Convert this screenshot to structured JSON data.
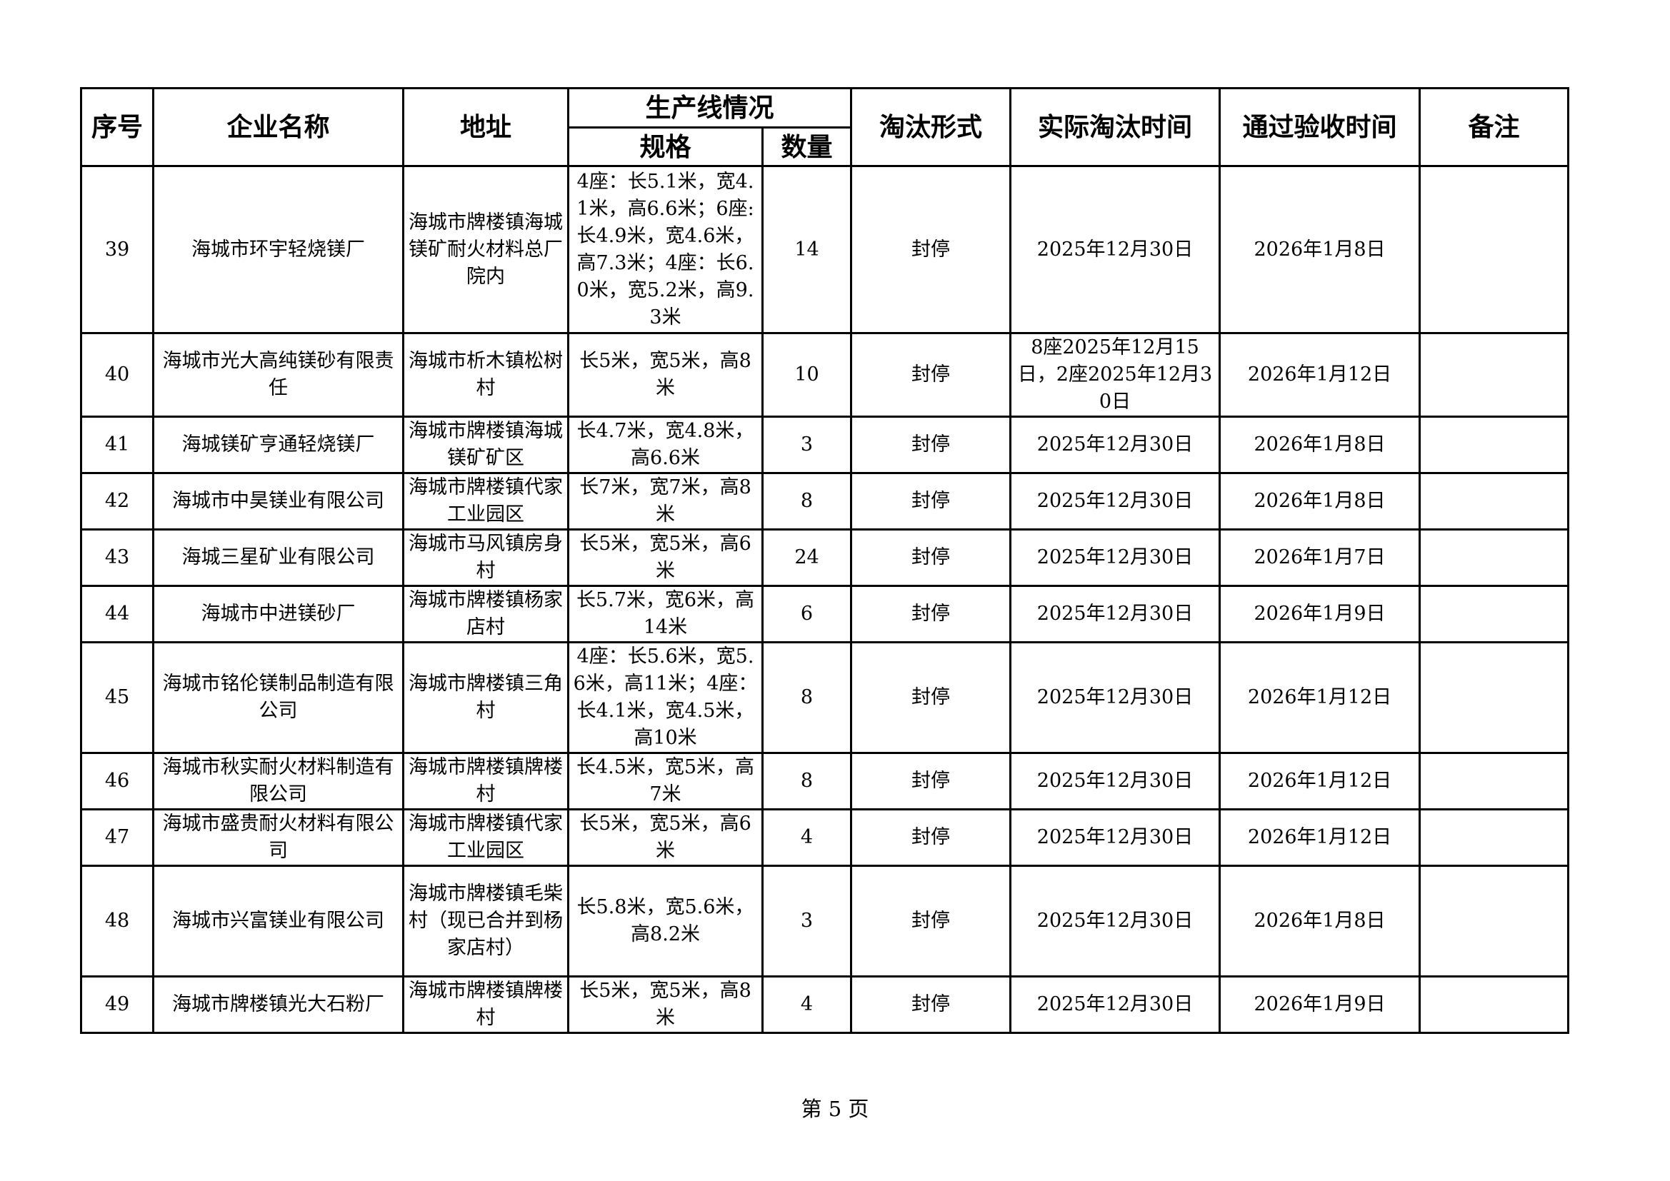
{
  "headers": {
    "seq": "序号",
    "company": "企业名称",
    "address": "地址",
    "line_group": "生产线情况",
    "spec": "规格",
    "qty": "数量",
    "form": "淘汰形式",
    "actual_time": "实际淘汰时间",
    "accept_time": "通过验收时间",
    "remark": "备注"
  },
  "rows": [
    {
      "seq": "39",
      "company": "海城市环宇轻烧镁厂",
      "address": "海城市牌楼镇海城镁矿耐火材料总厂院内",
      "spec": "4座：长5.1米，宽4.1米，高6.6米；6座:长4.9米，宽4.6米，高7.3米；4座：长6.0米，宽5.2米，高9.3米",
      "qty": "14",
      "form": "封停",
      "actual_time": "2025年12月30日",
      "accept_time": "2026年1月8日",
      "remark": ""
    },
    {
      "seq": "40",
      "company": "海城市光大高纯镁砂有限责任",
      "address": "海城市析木镇松树村",
      "spec": "长5米，宽5米，高8米",
      "qty": "10",
      "form": "封停",
      "actual_time": "8座2025年12月15日，2座2025年12月30日",
      "accept_time": "2026年1月12日",
      "remark": ""
    },
    {
      "seq": "41",
      "company": "海城镁矿亨通轻烧镁厂",
      "address": "海城市牌楼镇海城镁矿矿区",
      "spec": "长4.7米，宽4.8米，高6.6米",
      "qty": "3",
      "form": "封停",
      "actual_time": "2025年12月30日",
      "accept_time": "2026年1月8日",
      "remark": ""
    },
    {
      "seq": "42",
      "company": "海城市中昊镁业有限公司",
      "address": "海城市牌楼镇代家工业园区",
      "spec": "长7米，宽7米，高8米",
      "qty": "8",
      "form": "封停",
      "actual_time": "2025年12月30日",
      "accept_time": "2026年1月8日",
      "remark": ""
    },
    {
      "seq": "43",
      "company": "海城三星矿业有限公司",
      "address": "海城市马风镇房身村",
      "spec": "长5米，宽5米，高6米",
      "qty": "24",
      "form": "封停",
      "actual_time": "2025年12月30日",
      "accept_time": "2026年1月7日",
      "remark": ""
    },
    {
      "seq": "44",
      "company": "海城市中进镁砂厂",
      "address": "海城市牌楼镇杨家店村",
      "spec": "长5.7米，宽6米，高14米",
      "qty": "6",
      "form": "封停",
      "actual_time": "2025年12月30日",
      "accept_time": "2026年1月9日",
      "remark": ""
    },
    {
      "seq": "45",
      "company": "海城市铭伦镁制品制造有限公司",
      "address": "海城市牌楼镇三角村",
      "spec": "4座：长5.6米，宽5.6米，高11米；4座：长4.1米，宽4.5米，高10米",
      "qty": "8",
      "form": "封停",
      "actual_time": "2025年12月30日",
      "accept_time": "2026年1月12日",
      "remark": ""
    },
    {
      "seq": "46",
      "company": "海城市秋实耐火材料制造有限公司",
      "address": "海城市牌楼镇牌楼村",
      "spec": "长4.5米，宽5米，高7米",
      "qty": "8",
      "form": "封停",
      "actual_time": "2025年12月30日",
      "accept_time": "2026年1月12日",
      "remark": ""
    },
    {
      "seq": "47",
      "company": "海城市盛贵耐火材料有限公司",
      "address": "海城市牌楼镇代家工业园区",
      "spec": "长5米，宽5米，高6米",
      "qty": "4",
      "form": "封停",
      "actual_time": "2025年12月30日",
      "accept_time": "2026年1月12日",
      "remark": ""
    },
    {
      "seq": "48",
      "company": "海城市兴富镁业有限公司",
      "address": "海城市牌楼镇毛柴村（现已合并到杨家店村）",
      "spec": "长5.8米，宽5.6米，高8.2米",
      "qty": "3",
      "form": "封停",
      "actual_time": "2025年12月30日",
      "accept_time": "2026年1月8日",
      "remark": ""
    },
    {
      "seq": "49",
      "company": "海城市牌楼镇光大石粉厂",
      "address": "海城市牌楼镇牌楼村",
      "spec": "长5米，宽5米，高8米",
      "qty": "4",
      "form": "封停",
      "actual_time": "2025年12月30日",
      "accept_time": "2026年1月9日",
      "remark": ""
    }
  ],
  "footer": "第 5 页"
}
